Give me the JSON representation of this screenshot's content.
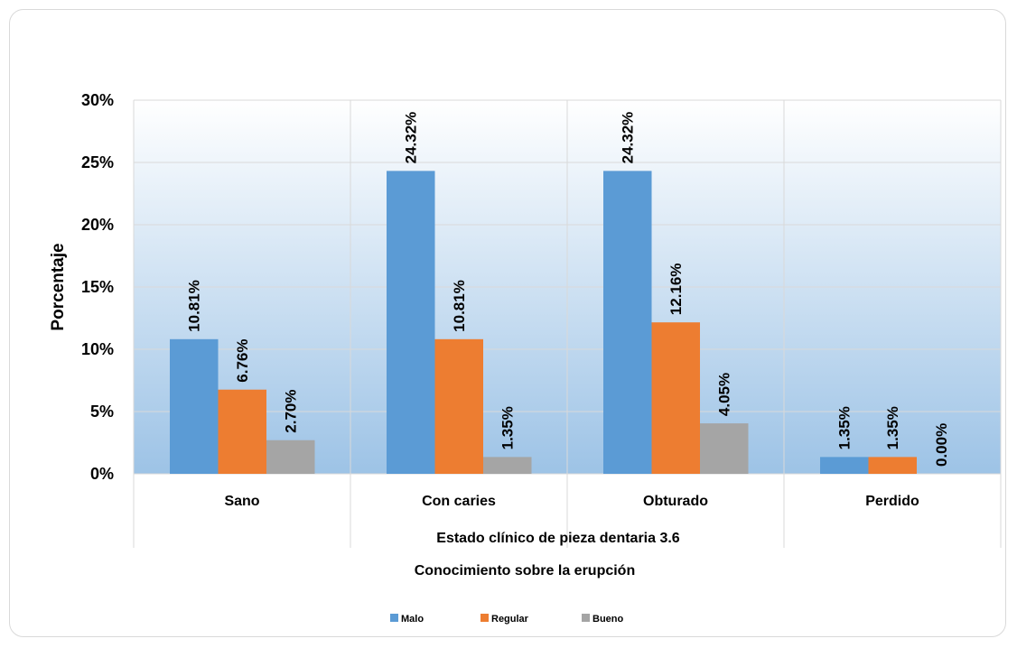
{
  "chart_data": {
    "type": "bar",
    "categories": [
      "Sano",
      "Con caries",
      "Obturado",
      "Perdido"
    ],
    "series": [
      {
        "name": "Malo",
        "values": [
          10.81,
          24.32,
          24.32,
          1.35
        ],
        "labels": [
          "10.81%",
          "24.32%",
          "24.32%",
          "1.35%"
        ],
        "color": "#5b9bd5"
      },
      {
        "name": "Regular",
        "values": [
          6.76,
          10.81,
          12.16,
          1.35
        ],
        "labels": [
          "6.76%",
          "10.81%",
          "12.16%",
          "1.35%"
        ],
        "color": "#ed7d31"
      },
      {
        "name": "Bueno",
        "values": [
          2.7,
          1.35,
          4.05,
          0.0
        ],
        "labels": [
          "2.70%",
          "1.35%",
          "4.05%",
          "0.00%"
        ],
        "color": "#a5a5a5"
      }
    ],
    "ylim": [
      0,
      30
    ],
    "yticks": [
      0,
      5,
      10,
      15,
      20,
      25,
      30
    ],
    "ytick_labels": [
      "0%",
      "5%",
      "10%",
      "15%",
      "20%",
      "25%",
      "30%"
    ],
    "ylabel": "Porcentaje",
    "xlabel": "Estado clínico  de pieza dentaria 3.6",
    "legend_title": "Conocimiento sobre la erupción",
    "legend_position": "bottom",
    "grid": true,
    "plot_background": [
      "#ffffff",
      "#9dc3e6"
    ]
  }
}
